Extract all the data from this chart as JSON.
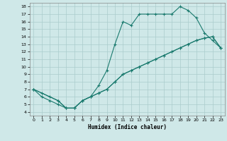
{
  "xlabel": "Humidex (Indice chaleur)",
  "bg_color": "#cfe8e8",
  "line_color": "#1a7a6e",
  "grid_color": "#aacccc",
  "xlim": [
    -0.5,
    23.5
  ],
  "ylim": [
    3.5,
    18.5
  ],
  "xticks": [
    0,
    1,
    2,
    3,
    4,
    5,
    6,
    7,
    8,
    9,
    10,
    11,
    12,
    13,
    14,
    15,
    16,
    17,
    18,
    19,
    20,
    21,
    22,
    23
  ],
  "yticks": [
    4,
    5,
    6,
    7,
    8,
    9,
    10,
    11,
    12,
    13,
    14,
    15,
    16,
    17,
    18
  ],
  "line1_x": [
    0,
    1,
    2,
    3,
    4,
    5,
    6,
    7,
    8,
    9,
    10,
    11,
    12,
    13,
    14,
    15,
    16,
    17,
    18,
    19,
    20,
    21,
    22,
    23
  ],
  "line1_y": [
    7,
    6,
    5.5,
    5,
    4.5,
    4.5,
    5.5,
    6.0,
    7.5,
    9.5,
    13.0,
    16.0,
    15.5,
    17.0,
    17.0,
    17.0,
    17.0,
    17.0,
    18.0,
    17.5,
    16.5,
    14.5,
    13.5,
    12.5
  ],
  "line2_x": [
    0,
    3,
    4,
    5,
    6,
    7,
    8,
    9,
    10,
    11,
    12,
    13,
    14,
    15,
    16,
    17,
    18,
    19,
    20,
    21,
    22,
    23
  ],
  "line2_y": [
    7,
    5.5,
    4.5,
    4.5,
    5.5,
    6.0,
    6.5,
    7.0,
    8.0,
    9.0,
    9.5,
    10.0,
    10.5,
    11.0,
    11.5,
    12.0,
    12.5,
    13.0,
    13.5,
    13.8,
    14.0,
    12.5
  ],
  "line3_x": [
    0,
    1,
    2,
    3,
    4,
    5,
    6,
    7,
    8,
    9,
    10,
    11,
    12,
    13,
    14,
    15,
    16,
    17,
    18,
    19,
    20,
    21,
    22,
    23
  ],
  "line3_y": [
    7,
    6.5,
    6.0,
    5.5,
    4.5,
    4.5,
    5.5,
    6.0,
    6.5,
    7.0,
    8.0,
    9.0,
    9.5,
    10.0,
    10.5,
    11.0,
    11.5,
    12.0,
    12.5,
    13.0,
    13.5,
    13.8,
    14.0,
    12.5
  ]
}
